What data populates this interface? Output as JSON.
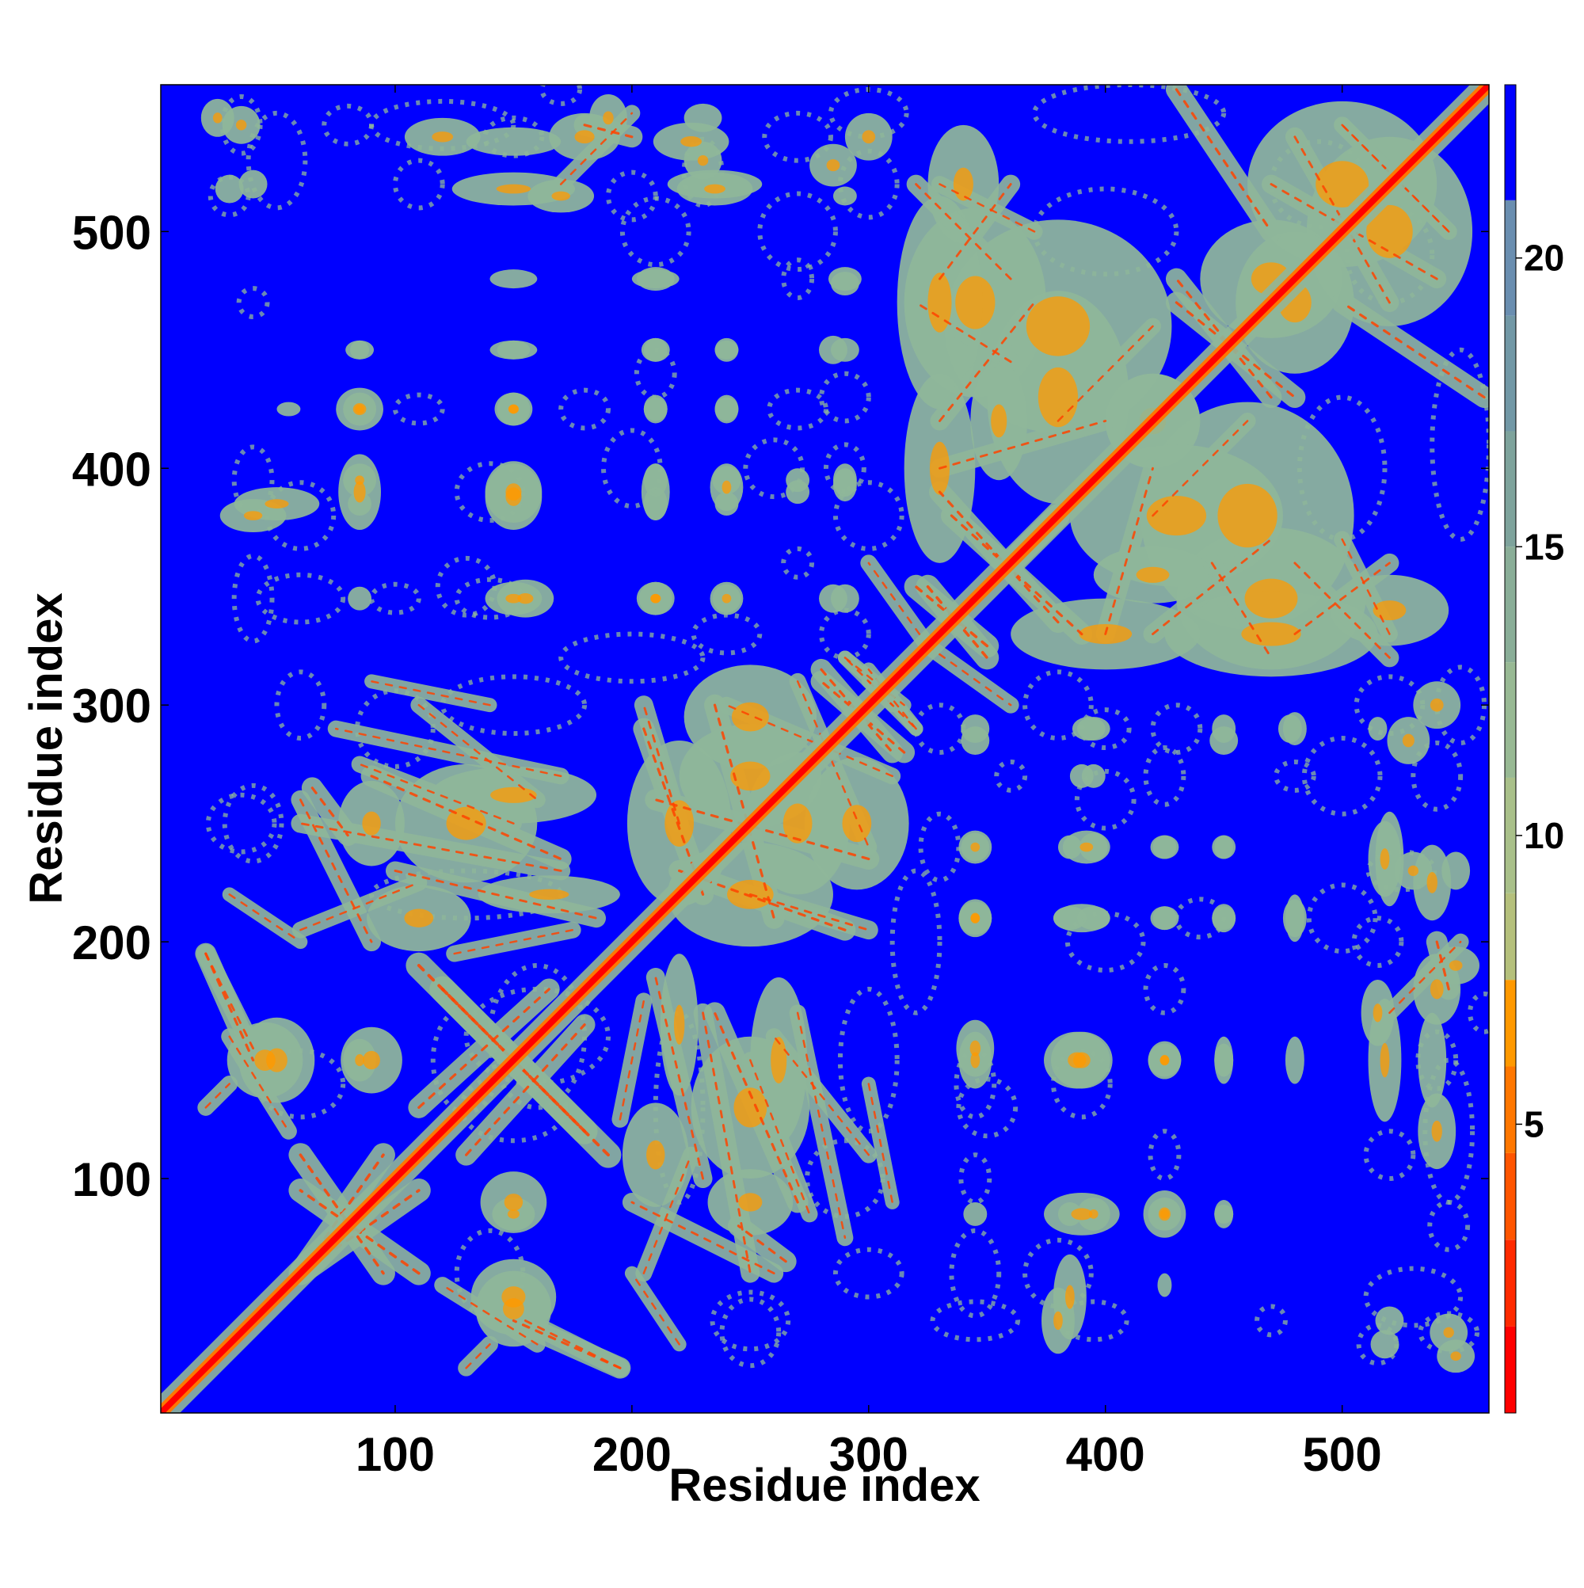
{
  "chart_data": {
    "type": "heatmap",
    "title": "",
    "xlabel": "Residue index",
    "ylabel": "Residue index",
    "xlim": [
      1,
      562
    ],
    "ylim": [
      1,
      562
    ],
    "x_ticks": [
      100,
      200,
      300,
      400,
      500
    ],
    "y_ticks": [
      100,
      200,
      300,
      400,
      500
    ],
    "colorbar": {
      "ticks": [
        5,
        10,
        15,
        20
      ],
      "range": [
        0,
        23
      ],
      "levels": [
        {
          "from": 0,
          "to": 1.5,
          "color": "#ff0000"
        },
        {
          "from": 1.5,
          "to": 3,
          "color": "#ff2a00"
        },
        {
          "from": 3,
          "to": 4.5,
          "color": "#ff5500"
        },
        {
          "from": 4.5,
          "to": 6,
          "color": "#ff7700"
        },
        {
          "from": 6,
          "to": 7.5,
          "color": "#ff9900"
        },
        {
          "from": 7.5,
          "to": 9,
          "color": "#b5c07c"
        },
        {
          "from": 9,
          "to": 11,
          "color": "#a9c08a"
        },
        {
          "from": 11,
          "to": 13,
          "color": "#98b994"
        },
        {
          "from": 13,
          "to": 15,
          "color": "#8aae98"
        },
        {
          "from": 15,
          "to": 17,
          "color": "#7ea39c"
        },
        {
          "from": 17,
          "to": 19,
          "color": "#7298a6"
        },
        {
          "from": 19,
          "to": 21,
          "color": "#6a8eb0"
        },
        {
          "from": 21,
          "to": 23,
          "color": "#0000ff"
        }
      ]
    },
    "background_value_color": "#0000ff",
    "contact_color": "#8fb79a",
    "core_color": "#ff4400",
    "diagonal_color": "#ff0000",
    "features": {
      "blobs": [
        [
          85,
          425,
          10,
          9
        ],
        [
          85,
          390,
          9,
          16
        ],
        [
          40,
          380,
          14,
          7
        ],
        [
          150,
          388,
          12,
          14
        ],
        [
          150,
          345,
          12,
          7
        ],
        [
          210,
          345,
          7,
          7
        ],
        [
          240,
          345,
          7,
          7
        ],
        [
          285,
          345,
          6,
          6
        ],
        [
          210,
          390,
          6,
          12
        ],
        [
          240,
          392,
          7,
          10
        ],
        [
          270,
          395,
          5,
          5
        ],
        [
          290,
          393,
          5,
          7
        ],
        [
          150,
          425,
          8,
          7
        ],
        [
          210,
          425,
          5,
          6
        ],
        [
          240,
          425,
          5,
          6
        ],
        [
          150,
          450,
          7,
          4
        ],
        [
          210,
          450,
          5,
          5
        ],
        [
          240,
          450,
          5,
          5
        ],
        [
          285,
          450,
          6,
          6
        ],
        [
          85,
          450,
          6,
          4
        ],
        [
          290,
          478,
          6,
          5
        ],
        [
          210,
          480,
          8,
          5
        ],
        [
          150,
          480,
          10,
          4
        ],
        [
          150,
          518,
          26,
          7
        ],
        [
          150,
          538,
          20,
          6
        ],
        [
          225,
          538,
          16,
          8
        ],
        [
          235,
          518,
          16,
          7
        ],
        [
          40,
          520,
          6,
          6
        ],
        [
          35,
          545,
          8,
          8
        ],
        [
          190,
          548,
          8,
          10
        ],
        [
          285,
          528,
          10,
          9
        ],
        [
          150,
          90,
          14,
          13
        ],
        [
          150,
          50,
          18,
          16
        ],
        [
          45,
          150,
          16,
          16
        ],
        [
          85,
          150,
          7,
          9
        ],
        [
          345,
          155,
          8,
          12
        ],
        [
          390,
          150,
          13,
          12
        ],
        [
          425,
          150,
          7,
          7
        ],
        [
          450,
          150,
          4,
          10
        ],
        [
          345,
          85,
          5,
          5
        ],
        [
          385,
          85,
          5,
          5
        ],
        [
          395,
          85,
          7,
          7
        ],
        [
          425,
          85,
          7,
          7
        ],
        [
          450,
          85,
          4,
          4
        ],
        [
          385,
          50,
          7,
          18
        ],
        [
          425,
          55,
          3,
          5
        ],
        [
          345,
          210,
          7,
          8
        ],
        [
          385,
          210,
          7,
          5
        ],
        [
          395,
          210,
          7,
          5
        ],
        [
          425,
          210,
          5,
          5
        ],
        [
          450,
          210,
          5,
          6
        ],
        [
          480,
          210,
          4,
          10
        ],
        [
          345,
          240,
          6,
          6
        ],
        [
          385,
          240,
          5,
          5
        ],
        [
          395,
          240,
          6,
          6
        ],
        [
          425,
          240,
          5,
          5
        ],
        [
          450,
          240,
          4,
          5
        ],
        [
          390,
          270,
          5,
          5
        ],
        [
          345,
          290,
          6,
          6
        ],
        [
          395,
          290,
          7,
          5
        ],
        [
          450,
          290,
          5,
          6
        ],
        [
          480,
          290,
          5,
          7
        ],
        [
          515,
          290,
          4,
          5
        ],
        [
          548,
          25,
          8,
          7
        ],
        [
          518,
          30,
          6,
          6
        ],
        [
          515,
          170,
          7,
          14
        ],
        [
          540,
          180,
          10,
          15
        ],
        [
          540,
          120,
          8,
          16
        ],
        [
          530,
          230,
          8,
          8
        ],
        [
          520,
          235,
          6,
          20
        ],
        [
          548,
          230,
          6,
          8
        ],
        [
          540,
          300,
          10,
          10
        ],
        [
          130,
          250,
          30,
          25
        ],
        [
          90,
          250,
          14,
          18
        ],
        [
          110,
          210,
          22,
          14
        ],
        [
          220,
          250,
          22,
          35
        ],
        [
          270,
          250,
          22,
          30
        ],
        [
          250,
          295,
          28,
          22
        ],
        [
          220,
          165,
          8,
          30
        ],
        [
          262,
          150,
          12,
          35
        ],
        [
          500,
          520,
          40,
          35
        ],
        [
          470,
          480,
          30,
          25
        ],
        [
          380,
          460,
          48,
          45
        ],
        [
          345,
          470,
          30,
          40
        ],
        [
          420,
          420,
          20,
          20
        ],
        [
          400,
          330,
          40,
          15
        ],
        [
          470,
          330,
          45,
          18
        ],
        [
          520,
          340,
          25,
          15
        ],
        [
          430,
          380,
          45,
          30
        ],
        [
          355,
          420,
          12,
          25
        ]
      ],
      "bands": [
        [
          20,
          195,
          40,
          150,
          9
        ],
        [
          30,
          160,
          55,
          120,
          7
        ],
        [
          120,
          180,
          190,
          110,
          11
        ],
        [
          130,
          110,
          180,
          165,
          9
        ],
        [
          60,
          110,
          95,
          60,
          10
        ],
        [
          60,
          60,
          95,
          110,
          10
        ],
        [
          155,
          40,
          195,
          20,
          8
        ],
        [
          130,
          20,
          140,
          30,
          7
        ],
        [
          90,
          270,
          170,
          235,
          9
        ],
        [
          100,
          230,
          185,
          210,
          8
        ],
        [
          110,
          300,
          160,
          260,
          7
        ],
        [
          65,
          265,
          80,
          245,
          9
        ],
        [
          180,
          545,
          200,
          540,
          9
        ],
        [
          170,
          520,
          200,
          550,
          7
        ],
        [
          60,
          260,
          90,
          200,
          8
        ],
        [
          30,
          220,
          60,
          200,
          6
        ],
        [
          205,
          290,
          230,
          220,
          9
        ],
        [
          235,
          300,
          260,
          210,
          9
        ],
        [
          250,
          220,
          300,
          205,
          8
        ],
        [
          280,
          315,
          310,
          280,
          9
        ],
        [
          270,
          310,
          300,
          240,
          7
        ],
        [
          290,
          320,
          315,
          300,
          6
        ],
        [
          325,
          350,
          350,
          320,
          10
        ],
        [
          335,
          380,
          390,
          330,
          9
        ],
        [
          330,
          420,
          370,
          470,
          8
        ],
        [
          330,
          480,
          360,
          520,
          8
        ],
        [
          430,
          560,
          470,
          500,
          9
        ],
        [
          480,
          540,
          520,
          470,
          8
        ],
        [
          430,
          470,
          480,
          430,
          9
        ],
        [
          445,
          360,
          470,
          320,
          8
        ],
        [
          480,
          360,
          520,
          320,
          8
        ],
        [
          500,
          370,
          520,
          330,
          7
        ],
        [
          500,
          545,
          545,
          500,
          7
        ],
        [
          250,
          150,
          275,
          85,
          7
        ],
        [
          230,
          170,
          250,
          60,
          8
        ],
        [
          270,
          170,
          290,
          75,
          7
        ],
        [
          205,
          60,
          225,
          110,
          7
        ],
        [
          300,
          140,
          310,
          90,
          6
        ],
        [
          195,
          125,
          205,
          175,
          7
        ],
        [
          400,
          330,
          420,
          400,
          8
        ],
        [
          360,
          360,
          380,
          380,
          10
        ],
        [
          325,
          325,
          360,
          300,
          7
        ],
        [
          380,
          420,
          420,
          460,
          7
        ],
        [
          300,
          310,
          320,
          290,
          6
        ]
      ],
      "scatter": [
        [
          530,
          50,
          20,
          12
        ],
        [
          545,
          35,
          12,
          8
        ],
        [
          515,
          30,
          8,
          8
        ],
        [
          395,
          40,
          14,
          8
        ],
        [
          345,
          40,
          18,
          8
        ],
        [
          470,
          40,
          6,
          6
        ],
        [
          440,
          210,
          10,
          8
        ],
        [
          525,
          230,
          14,
          8
        ],
        [
          515,
          200,
          10,
          10
        ],
        [
          560,
          170,
          6,
          8
        ],
        [
          520,
          110,
          10,
          10
        ],
        [
          390,
          140,
          12,
          14
        ],
        [
          350,
          130,
          12,
          12
        ],
        [
          380,
          60,
          14,
          14
        ],
        [
          290,
          100,
          16,
          16
        ],
        [
          300,
          60,
          14,
          10
        ],
        [
          250,
          40,
          16,
          12
        ],
        [
          150,
          130,
          22,
          14
        ],
        [
          60,
          140,
          18,
          14
        ],
        [
          35,
          250,
          14,
          12
        ],
        [
          150,
          300,
          30,
          12
        ],
        [
          240,
          330,
          14,
          8
        ],
        [
          290,
          330,
          10,
          10
        ],
        [
          60,
          345,
          18,
          10
        ],
        [
          100,
          345,
          10,
          6
        ],
        [
          140,
          345,
          14,
          8
        ],
        [
          200,
          400,
          12,
          16
        ],
        [
          260,
          400,
          12,
          12
        ],
        [
          300,
          380,
          14,
          14
        ],
        [
          110,
          425,
          10,
          6
        ],
        [
          180,
          425,
          10,
          8
        ],
        [
          270,
          425,
          12,
          8
        ],
        [
          210,
          500,
          14,
          14
        ],
        [
          270,
          500,
          16,
          16
        ],
        [
          300,
          520,
          12,
          14
        ],
        [
          300,
          550,
          16,
          10
        ],
        [
          120,
          545,
          30,
          10
        ],
        [
          80,
          545,
          10,
          8
        ],
        [
          410,
          550,
          40,
          12
        ],
        [
          490,
          520,
          20,
          18
        ],
        [
          540,
          270,
          10,
          14
        ],
        [
          480,
          270,
          8,
          6
        ],
        [
          430,
          290,
          10,
          10
        ],
        [
          400,
          290,
          10,
          8
        ],
        [
          360,
          270,
          6,
          6
        ],
        [
          540,
          150,
          8,
          12
        ],
        [
          160,
          160,
          30,
          20
        ],
        [
          220,
          130,
          10,
          40
        ],
        [
          320,
          200,
          10,
          30
        ],
        [
          400,
          500,
          30,
          18
        ]
      ]
    }
  }
}
